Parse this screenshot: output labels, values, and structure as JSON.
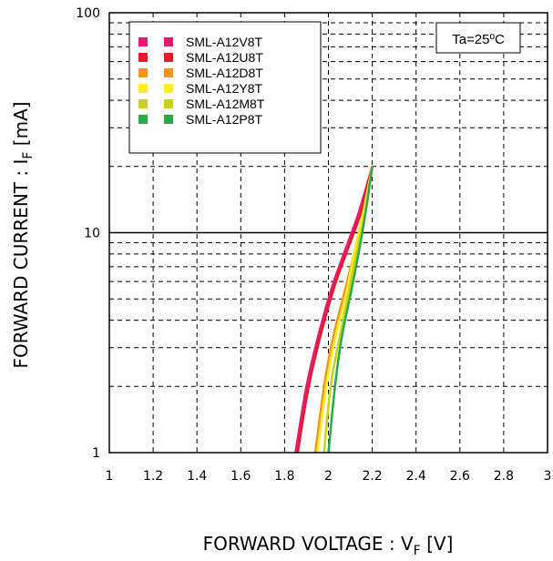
{
  "chart_data": {
    "type": "line",
    "title": "",
    "xlabel": {
      "main": "FORWARD VOLTAGE : V",
      "sub": "F",
      "unit": " [V]"
    },
    "ylabel": {
      "main": "FORWARD CURRENT : I",
      "sub": "F",
      "unit": " [mA]"
    },
    "xlim": [
      1,
      3
    ],
    "ylim": [
      1,
      100
    ],
    "y_scale": "log",
    "grid": true,
    "x_ticks": [
      "1",
      "1.2",
      "1.4",
      "1.6",
      "1.8",
      "2",
      "2.2",
      "2.4",
      "2.6",
      "2.8",
      "3"
    ],
    "y_ticks": [
      "1",
      "10",
      "100"
    ],
    "annotation": "Ta=25ºC",
    "legend_position": "top-left",
    "series": [
      {
        "name": "SML-A12V8T",
        "color": "#e6196e",
        "points": [
          [
            1.85,
            1
          ],
          [
            1.9,
            2
          ],
          [
            1.96,
            3.6
          ],
          [
            2.02,
            5.8
          ],
          [
            2.08,
            8.5
          ],
          [
            2.14,
            12.5
          ],
          [
            2.2,
            20
          ]
        ]
      },
      {
        "name": "SML-A12U8T",
        "color": "#e8192c",
        "points": [
          [
            1.86,
            1
          ],
          [
            1.91,
            2
          ],
          [
            1.97,
            3.6
          ],
          [
            2.03,
            5.8
          ],
          [
            2.09,
            8.5
          ],
          [
            2.15,
            12.5
          ],
          [
            2.2,
            20
          ]
        ]
      },
      {
        "name": "SML-A12D8T",
        "color": "#f4961e",
        "points": [
          [
            1.94,
            1
          ],
          [
            1.98,
            2
          ],
          [
            2.02,
            3.3
          ],
          [
            2.07,
            5.2
          ],
          [
            2.12,
            8.3
          ],
          [
            2.16,
            12.5
          ],
          [
            2.2,
            20
          ]
        ]
      },
      {
        "name": "SML-A12Y8T",
        "color": "#ffef1e",
        "points": [
          [
            1.95,
            1
          ],
          [
            1.99,
            2
          ],
          [
            2.03,
            3.3
          ],
          [
            2.08,
            5.2
          ],
          [
            2.12,
            8.3
          ],
          [
            2.16,
            12.5
          ],
          [
            2.2,
            20
          ]
        ]
      },
      {
        "name": "SML-A12M8T",
        "color": "#c8d21e",
        "points": [
          [
            1.98,
            1
          ],
          [
            2.01,
            2
          ],
          [
            2.05,
            3.3
          ],
          [
            2.09,
            5.2
          ],
          [
            2.13,
            8.3
          ],
          [
            2.17,
            12.5
          ],
          [
            2.2,
            20
          ]
        ]
      },
      {
        "name": "SML-A12P8T",
        "color": "#28aa46",
        "points": [
          [
            2.0,
            1
          ],
          [
            2.03,
            2
          ],
          [
            2.06,
            3.3
          ],
          [
            2.1,
            5.2
          ],
          [
            2.14,
            8.3
          ],
          [
            2.17,
            12.5
          ],
          [
            2.2,
            20
          ]
        ]
      }
    ]
  }
}
